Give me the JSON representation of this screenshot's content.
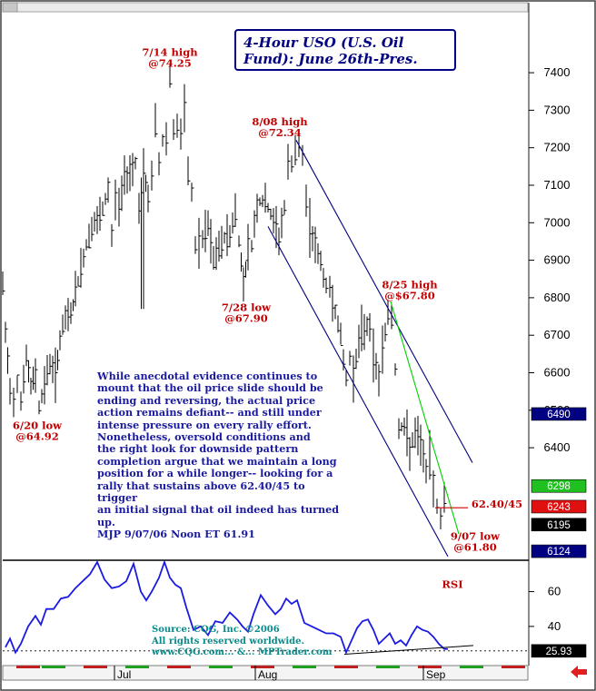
{
  "chart_data": [
    {
      "type": "bar",
      "subtype": "ohlc",
      "title": "4-Hour USO (U.S. Oil Fund): June 26th-Pres.",
      "y_axis": {
        "ticks": [
          6400,
          6500,
          6600,
          6700,
          6800,
          6900,
          7000,
          7100,
          7200,
          7300,
          7400
        ],
        "ylim": [
          6100,
          7560
        ],
        "side": "right"
      },
      "x_axis": {
        "labels": [
          "Jul",
          "Aug",
          "Sep"
        ]
      },
      "grid": false,
      "series": [
        {
          "path": [
            [
              0,
              6830
            ],
            [
              3,
              6700
            ],
            [
              8,
              6560
            ],
            [
              12,
              6530
            ],
            [
              16,
              6580
            ],
            [
              20,
              6530
            ],
            [
              26,
              6640
            ],
            [
              31,
              6560
            ],
            [
              36,
              6600
            ],
            [
              40,
              6510
            ],
            [
              46,
              6570
            ],
            [
              52,
              6630
            ],
            [
              58,
              6590
            ],
            [
              63,
              6690
            ],
            [
              69,
              6740
            ],
            [
              75,
              6760
            ],
            [
              80,
              6810
            ],
            [
              86,
              6880
            ],
            [
              92,
              6940
            ],
            [
              98,
              6990
            ],
            [
              104,
              7000
            ],
            [
              110,
              7030
            ],
            [
              116,
              7090
            ],
            [
              120,
              6960
            ],
            [
              124,
              7070
            ],
            [
              128,
              7040
            ],
            [
              134,
              7120
            ],
            [
              140,
              7140
            ],
            [
              146,
              7160
            ],
            [
              150,
              7050
            ],
            [
              155,
              7140
            ],
            [
              160,
              7060
            ],
            [
              164,
              7130
            ],
            [
              168,
              7260
            ],
            [
              172,
              7160
            ],
            [
              176,
              7220
            ],
            [
              180,
              7230
            ],
            [
              184,
              7390
            ],
            [
              188,
              7250
            ],
            [
              192,
              7260
            ],
            [
              196,
              7230
            ],
            [
              200,
              7290
            ],
            [
              204,
              7130
            ],
            [
              208,
              7080
            ],
            [
              212,
              6940
            ],
            [
              216,
              6950
            ],
            [
              220,
              6950
            ],
            [
              226,
              6990
            ],
            [
              232,
              6900
            ],
            [
              238,
              6930
            ],
            [
              244,
              6960
            ],
            [
              250,
              6970
            ],
            [
              256,
              7030
            ],
            [
              260,
              6950
            ],
            [
              265,
              6840
            ],
            [
              270,
              6930
            ],
            [
              274,
              6940
            ],
            [
              280,
              7050
            ],
            [
              286,
              7060
            ],
            [
              292,
              7040
            ],
            [
              298,
              7000
            ],
            [
              304,
              6960
            ],
            [
              310,
              7040
            ],
            [
              314,
              7150
            ],
            [
              318,
              7160
            ],
            [
              322,
              7170
            ],
            [
              326,
              7200
            ],
            [
              330,
              7170
            ],
            [
              334,
              7060
            ],
            [
              338,
              6990
            ],
            [
              344,
              6940
            ],
            [
              350,
              6890
            ],
            [
              356,
              6830
            ],
            [
              360,
              6820
            ],
            [
              366,
              6770
            ],
            [
              372,
              6690
            ],
            [
              378,
              6580
            ],
            [
              382,
              6640
            ],
            [
              386,
              6600
            ],
            [
              392,
              6680
            ],
            [
              398,
              6720
            ],
            [
              404,
              6730
            ],
            [
              408,
              6640
            ],
            [
              414,
              6590
            ],
            [
              418,
              6660
            ],
            [
              424,
              6760
            ],
            [
              428,
              6740
            ],
            [
              432,
              6610
            ],
            [
              436,
              6460
            ],
            [
              442,
              6450
            ],
            [
              448,
              6400
            ],
            [
              454,
              6430
            ],
            [
              460,
              6410
            ],
            [
              466,
              6340
            ],
            [
              470,
              6360
            ],
            [
              474,
              6300
            ],
            [
              478,
              6250
            ],
            [
              482,
              6210
            ],
            [
              486,
              6270
            ],
            [
              490,
              6180
            ]
          ]
        }
      ],
      "indicator_lines": [
        {
          "color": "#000080",
          "from": [
            292,
            6990
          ],
          "to": [
            490,
            6110
          ]
        },
        {
          "color": "#000080",
          "from": [
            323,
            7220
          ],
          "to": [
            517,
            6360
          ]
        },
        {
          "color": "#00d000",
          "from": [
            427,
            6790
          ],
          "to": [
            502,
            6170
          ]
        },
        {
          "color": "#d00000",
          "from": [
            476,
            6240
          ],
          "to": [
            512,
            6240
          ]
        }
      ],
      "annotations": [
        {
          "color": "#c00000",
          "lines": [
            "7/14 high",
            "@74.25"
          ],
          "at": [
            184,
            7445
          ]
        },
        {
          "color": "#c00000",
          "lines": [
            "8/08 high",
            "@72.34"
          ],
          "at": [
            305,
            7260
          ]
        },
        {
          "color": "#c00000",
          "lines": [
            "7/28 low",
            "@67.90"
          ],
          "at": [
            268,
            6765
          ]
        },
        {
          "color": "#c00000",
          "lines": [
            "8/25 high",
            "@$67.80"
          ],
          "at": [
            448,
            6825
          ]
        },
        {
          "color": "#c00000",
          "lines": [
            "6/20 low",
            "@64.92"
          ],
          "at": [
            38,
            6450
          ]
        },
        {
          "color": "#c00000",
          "lines": [
            "9/07 low",
            "@61.80"
          ],
          "at": [
            520,
            6155
          ]
        },
        {
          "color": "#c00000",
          "lines": [
            "62.40/45"
          ],
          "at": [
            544,
            6240
          ]
        }
      ],
      "price_tags": [
        {
          "text": "6490",
          "bg": "#000080",
          "value": 6490
        },
        {
          "text": "6298",
          "bg": "#20c020",
          "value": 6298
        },
        {
          "text": "6243",
          "bg": "#e01010",
          "value": 6243
        },
        {
          "text": "6195",
          "bg": "#000000",
          "value": 6195
        },
        {
          "text": "6124",
          "bg": "#000080",
          "value": 6124
        }
      ],
      "note": [
        "While anecdotal evidence continues to",
        "mount that the oil price slide should be",
        "ending and reversing, the actual price",
        "action remains defiant-- and still under",
        "intense pressure on every rally effort.",
        "Nonetheless, oversold conditions and",
        "the right look for downside pattern",
        "completion argue that we maintain a long",
        "position for a while longer-- looking for a",
        "rally that sustains above 62.40/45 to trigger",
        "an initial signal that oil indeed has turned up.",
        "MJP  9/07/06 Noon ET  61.91"
      ]
    },
    {
      "type": "line",
      "label": "RSI",
      "y_axis": {
        "ticks": [
          40,
          60
        ],
        "ylim": [
          18,
          77
        ],
        "side": "right"
      },
      "current_value_tag": {
        "text": "25.93",
        "value": 25.93
      },
      "reference_level": 25.93,
      "series": [
        {
          "path": [
            [
              3,
              28
            ],
            [
              8,
              33
            ],
            [
              14,
              25
            ],
            [
              20,
              30
            ],
            [
              28,
              40
            ],
            [
              36,
              46
            ],
            [
              42,
              41
            ],
            [
              48,
              50
            ],
            [
              56,
              50
            ],
            [
              64,
              56
            ],
            [
              72,
              57
            ],
            [
              80,
              62
            ],
            [
              88,
              66
            ],
            [
              96,
              70
            ],
            [
              104,
              77
            ],
            [
              112,
              67
            ],
            [
              120,
              62
            ],
            [
              128,
              63
            ],
            [
              136,
              66
            ],
            [
              144,
              76
            ],
            [
              152,
              60
            ],
            [
              158,
              55
            ],
            [
              164,
              60
            ],
            [
              172,
              68
            ],
            [
              178,
              77
            ],
            [
              184,
              68
            ],
            [
              190,
              64
            ],
            [
              196,
              62
            ],
            [
              202,
              51
            ],
            [
              210,
              38
            ],
            [
              218,
              40
            ],
            [
              226,
              35
            ],
            [
              234,
              43
            ],
            [
              242,
              42
            ],
            [
              250,
              48
            ],
            [
              258,
              44
            ],
            [
              264,
              40
            ],
            [
              270,
              37
            ],
            [
              276,
              47
            ],
            [
              284,
              58
            ],
            [
              292,
              52
            ],
            [
              300,
              47
            ],
            [
              306,
              50
            ],
            [
              312,
              56
            ],
            [
              318,
              53
            ],
            [
              324,
              55
            ],
            [
              332,
              42
            ],
            [
              340,
              40
            ],
            [
              348,
              38
            ],
            [
              356,
              36
            ],
            [
              364,
              36
            ],
            [
              372,
              34
            ],
            [
              378,
              25
            ],
            [
              384,
              32
            ],
            [
              390,
              39
            ],
            [
              396,
              43
            ],
            [
              402,
              44
            ],
            [
              408,
              38
            ],
            [
              414,
              30
            ],
            [
              420,
              33
            ],
            [
              426,
              36
            ],
            [
              432,
              30
            ],
            [
              438,
              32
            ],
            [
              444,
              29
            ],
            [
              450,
              35
            ],
            [
              456,
              40
            ],
            [
              462,
              38
            ],
            [
              468,
              37
            ],
            [
              474,
              34
            ],
            [
              480,
              30
            ],
            [
              486,
              27
            ],
            [
              490,
              27
            ]
          ]
        }
      ],
      "support_line": {
        "from": [
          376,
          24
        ],
        "to": [
          518,
          29
        ]
      },
      "source_text": [
        "Source: CQG, Inc. ©2006",
        "All rights reserved worldwide.",
        "www.CQG.com... &... MPTrader.com"
      ]
    }
  ]
}
